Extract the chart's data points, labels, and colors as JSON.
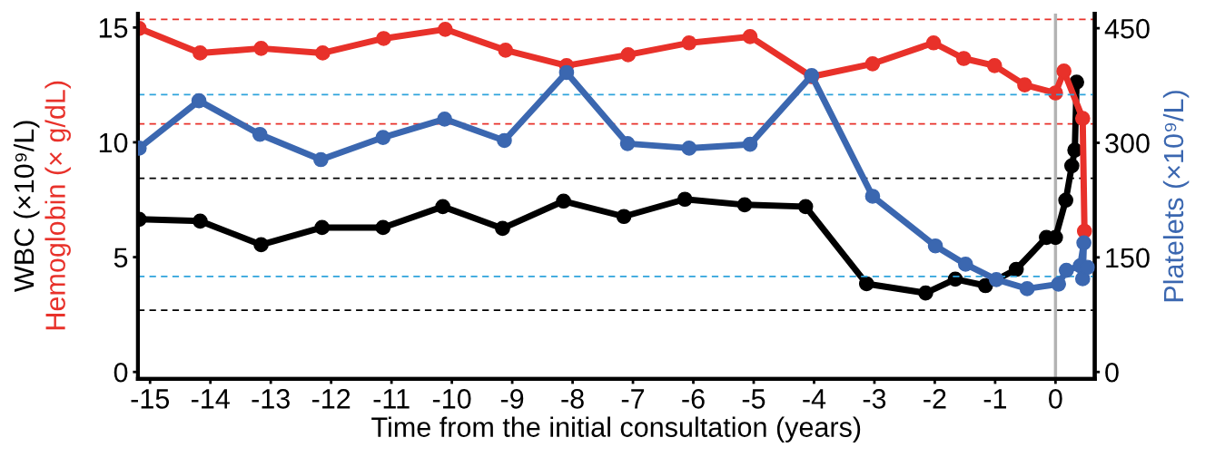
{
  "chart_data": {
    "type": "line",
    "xlabel": "Time from the initial consultation (years)",
    "ylabel": "WBC (×10⁹/L)\nHemoglobin (× g/dL)",
    "y2label": "Platelets (×10⁹/L)",
    "xlim": [
      -15.2,
      0.65
    ],
    "xticks": [
      -15,
      -14,
      -13,
      -12,
      -11,
      -10,
      -9,
      -8,
      -7,
      -6,
      -5,
      -4,
      -3,
      -2,
      -1,
      0
    ],
    "ylim": [
      -0.3,
      15.6
    ],
    "yticks": [
      0,
      5,
      10,
      15
    ],
    "y2lim": [
      -9,
      469
    ],
    "y2ticks": [
      0,
      150,
      300,
      450
    ],
    "marker": "circle",
    "line_style": "solid",
    "grid": false,
    "legend": false,
    "series": [
      {
        "color": "#000000",
        "x": [
          -15.18,
          -14.17,
          -13.16,
          -12.15,
          -11.14,
          -10.15,
          -9.16,
          -8.15,
          -7.15,
          -6.14,
          -5.15,
          -4.14,
          -3.13,
          -2.15,
          -1.66,
          -1.16,
          -0.65,
          -0.15,
          0,
          0.17,
          0.27,
          0.32,
          0.35
        ],
        "values": [
          6.65,
          6.57,
          5.54,
          6.29,
          6.29,
          7.2,
          6.25,
          7.44,
          6.77,
          7.52,
          7.28,
          7.2,
          3.84,
          3.44,
          4.04,
          3.76,
          4.47,
          5.86,
          5.86,
          7.48,
          8.98,
          9.66,
          12.62
        ]
      },
      {
        "color": "#e8312a",
        "x": [
          -15.18,
          -14.17,
          -13.16,
          -12.14,
          -11.13,
          -10.11,
          -9.11,
          -8.1,
          -7.08,
          -6.07,
          -5.06,
          -4.04,
          -3.03,
          -2.02,
          -1.52,
          -1.01,
          -0.51,
          0,
          0.14,
          0.45,
          0.48
        ],
        "values": [
          14.96,
          13.89,
          14.09,
          13.89,
          14.52,
          14.92,
          14.01,
          13.34,
          13.81,
          14.33,
          14.6,
          12.86,
          13.42,
          14.33,
          13.65,
          13.34,
          12.5,
          12.15,
          13.1,
          11.04,
          6.13
        ]
      },
      {
        "color": "#3b67b0",
        "axis": "y2",
        "x": [
          -15.18,
          -14.19,
          -13.18,
          -12.17,
          -11.14,
          -10.12,
          -9.13,
          -8.1,
          -7.09,
          -6.07,
          -5.06,
          -4.04,
          -3.03,
          -1.99,
          -1.49,
          -0.98,
          -0.47,
          0.05,
          0.18,
          0.41,
          0.47,
          0.45,
          0.53
        ],
        "values": [
          293,
          355,
          311,
          278,
          307,
          331,
          303,
          392,
          299,
          293,
          298,
          388,
          230,
          165,
          141,
          121,
          109,
          115,
          133,
          139,
          169,
          122,
          137
        ]
      }
    ],
    "ref_lines": [
      {
        "axis": "y",
        "value": 15.35,
        "color": "#e8312a",
        "line_style": "dashed"
      },
      {
        "axis": "y",
        "value": 10.8,
        "color": "#e8312a",
        "line_style": "dashed"
      },
      {
        "axis": "y",
        "value": 8.43,
        "color": "#000000",
        "line_style": "dashed"
      },
      {
        "axis": "y",
        "value": 2.69,
        "color": "#000000",
        "line_style": "dashed"
      },
      {
        "axis": "y2",
        "value": 363,
        "color": "#2ea3dc",
        "line_style": "dashed"
      },
      {
        "axis": "y2",
        "value": 125,
        "color": "#2ea3dc",
        "line_style": "dashed"
      },
      {
        "axis": "x",
        "value": 0,
        "color": "#b3b3b3",
        "line_style": "solid"
      }
    ]
  }
}
